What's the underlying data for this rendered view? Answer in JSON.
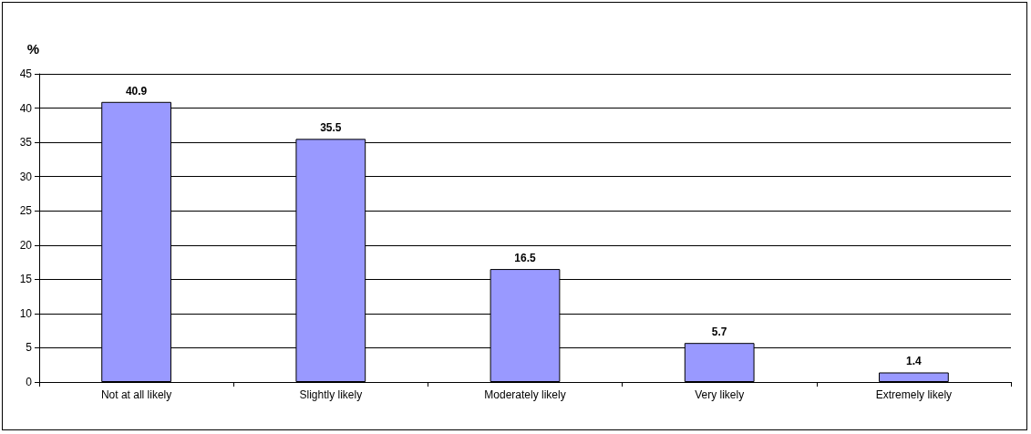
{
  "chart_data": {
    "type": "bar",
    "ylabel": "%",
    "categories": [
      "Not at all likely",
      "Slightly likely",
      "Moderately likely",
      "Very likely",
      "Extremely likely"
    ],
    "values": [
      40.9,
      35.5,
      16.5,
      5.7,
      1.4
    ],
    "color": "#9999ff",
    "ylim": [
      0,
      45
    ],
    "yticks": [
      0,
      5,
      10,
      15,
      20,
      25,
      30,
      35,
      40,
      45
    ],
    "grid": "y",
    "data_labels": true
  }
}
